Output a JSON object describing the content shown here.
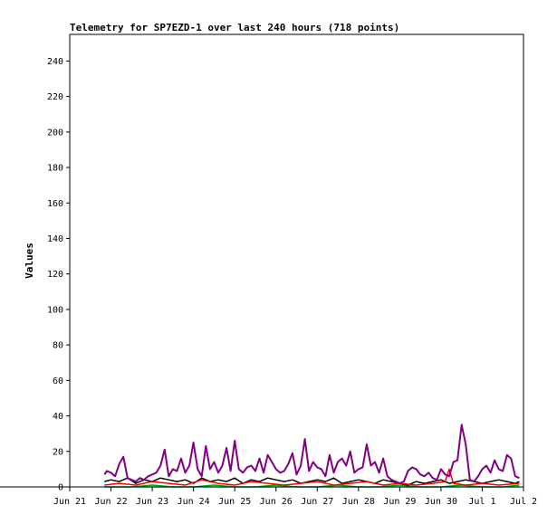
{
  "chart_data": {
    "type": "line",
    "title": "Telemetry for SP7EZD-1 over last 240 hours (718 points)",
    "ylabel": "Values",
    "xlabel": "",
    "ylim": [
      0,
      255
    ],
    "y_ticks": [
      0,
      20,
      40,
      60,
      80,
      100,
      120,
      140,
      160,
      180,
      200,
      220,
      240
    ],
    "x_ticks": [
      "Jun 21",
      "Jun 22",
      "Jun 23",
      "Jun 24",
      "Jun 25",
      "Jun 26",
      "Jun 27",
      "Jun 28",
      "Jun 29",
      "Jun 30",
      "Jul 1",
      "Jul 2"
    ],
    "xlim_days": [
      0,
      11
    ],
    "series": [
      {
        "color": "#800080",
        "x": [
          0.84,
          0.9,
          1.0,
          1.1,
          1.2,
          1.3,
          1.4,
          1.5,
          1.6,
          1.7,
          1.8,
          1.9,
          2.0,
          2.1,
          2.2,
          2.3,
          2.4,
          2.5,
          2.6,
          2.7,
          2.8,
          2.9,
          3.0,
          3.1,
          3.2,
          3.3,
          3.4,
          3.5,
          3.6,
          3.7,
          3.8,
          3.9,
          4.0,
          4.1,
          4.2,
          4.3,
          4.4,
          4.5,
          4.6,
          4.7,
          4.8,
          4.9,
          5.0,
          5.1,
          5.2,
          5.3,
          5.4,
          5.5,
          5.6,
          5.7,
          5.8,
          5.9,
          6.0,
          6.1,
          6.2,
          6.3,
          6.4,
          6.5,
          6.6,
          6.7,
          6.8,
          6.9,
          7.0,
          7.1,
          7.2,
          7.3,
          7.4,
          7.5,
          7.6,
          7.7,
          7.8,
          7.9,
          8.0,
          8.1,
          8.2,
          8.3,
          8.4,
          8.5,
          8.6,
          8.7,
          8.8,
          8.9,
          9.0,
          9.1,
          9.2,
          9.3,
          9.4,
          9.5,
          9.6,
          9.7,
          9.8,
          9.9,
          10.0,
          10.1,
          10.2,
          10.3,
          10.4,
          10.5,
          10.6,
          10.7,
          10.8,
          10.9
        ],
        "y": [
          7,
          9,
          8,
          6,
          13,
          17,
          5,
          4,
          3,
          5,
          4,
          6,
          7,
          8,
          12,
          21,
          6,
          10,
          9,
          16,
          8,
          12,
          25,
          10,
          6,
          23,
          10,
          14,
          8,
          12,
          22,
          9,
          26,
          10,
          8,
          11,
          12,
          9,
          16,
          8,
          18,
          14,
          10,
          8,
          9,
          13,
          19,
          7,
          12,
          27,
          9,
          14,
          11,
          10,
          6,
          18,
          8,
          14,
          16,
          12,
          20,
          8,
          10,
          11,
          24,
          12,
          14,
          8,
          16,
          6,
          4,
          3,
          2,
          3,
          9,
          11,
          10,
          7,
          6,
          8,
          5,
          4,
          10,
          7,
          6,
          14,
          15,
          35,
          24,
          4,
          3,
          6,
          10,
          12,
          8,
          15,
          10,
          9,
          18,
          16,
          6,
          5
        ]
      },
      {
        "color": "#ff0000",
        "x": [
          0.84,
          1.2,
          1.6,
          2.0,
          2.4,
          2.8,
          3.2,
          3.6,
          4.0,
          4.4,
          4.8,
          5.2,
          5.6,
          6.0,
          6.4,
          6.8,
          7.2,
          7.6,
          8.0,
          8.4,
          8.8,
          9.1,
          9.2,
          9.3,
          9.6,
          10.0,
          10.4,
          10.9
        ],
        "y": [
          1,
          2,
          1,
          3,
          2,
          1,
          4,
          2,
          1,
          3,
          2,
          1,
          2,
          3,
          1,
          2,
          3,
          1,
          2,
          1,
          2,
          3,
          10,
          2,
          1,
          2,
          1,
          2
        ]
      },
      {
        "color": "#000000",
        "x": [
          0.84,
          1.0,
          1.2,
          1.4,
          1.6,
          1.8,
          2.0,
          2.2,
          2.4,
          2.6,
          2.8,
          3.0,
          3.2,
          3.4,
          3.6,
          3.8,
          4.0,
          4.2,
          4.4,
          4.6,
          4.8,
          5.0,
          5.2,
          5.4,
          5.6,
          5.8,
          6.0,
          6.2,
          6.4,
          6.6,
          6.8,
          7.0,
          7.2,
          7.4,
          7.6,
          7.8,
          8.0,
          8.2,
          8.4,
          8.6,
          8.8,
          9.0,
          9.2,
          9.4,
          9.6,
          9.8,
          10.0,
          10.2,
          10.4,
          10.6,
          10.8,
          10.9
        ],
        "y": [
          3,
          4,
          3,
          5,
          2,
          4,
          3,
          5,
          4,
          3,
          4,
          2,
          5,
          3,
          4,
          3,
          5,
          2,
          4,
          3,
          5,
          4,
          3,
          4,
          2,
          3,
          4,
          3,
          5,
          2,
          3,
          4,
          3,
          2,
          4,
          3,
          2,
          1,
          3,
          2,
          3,
          4,
          2,
          3,
          4,
          3,
          2,
          3,
          4,
          3,
          2,
          3
        ]
      },
      {
        "color": "#00aa00",
        "x": [
          0.84,
          1.5,
          2.0,
          2.5,
          3.0,
          3.5,
          4.0,
          4.5,
          5.0,
          5.5,
          6.0,
          6.5,
          7.0,
          7.5,
          8.0,
          8.5,
          9.0,
          9.5,
          10.0,
          10.5,
          10.9
        ],
        "y": [
          0,
          0,
          1,
          0,
          0,
          1,
          0,
          0,
          1,
          0,
          0,
          1,
          0,
          0,
          1,
          0,
          0,
          1,
          0,
          0,
          1
        ]
      },
      {
        "color": "#00cccc",
        "x": [
          0.84,
          2.0,
          4.0,
          6.0,
          8.0,
          10.0,
          10.9
        ],
        "y": [
          0,
          0,
          0,
          0,
          0,
          0,
          0
        ]
      }
    ]
  }
}
